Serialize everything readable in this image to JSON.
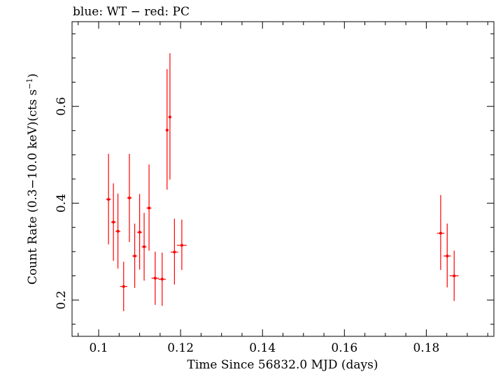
{
  "chart_data": {
    "type": "scatter",
    "title": "blue: WT − red: PC",
    "xlabel": "Time Since 56832.0 MJD (days)",
    "ylabel": "Count Rate (0.3−10.0 keV)(cts s",
    "ylabel_sup": "−1",
    "ylabel_end": ")",
    "xlim": [
      0.0935,
      0.1965
    ],
    "ylim": [
      0.125,
      0.775
    ],
    "x_ticks": [
      0.1,
      0.12,
      0.14,
      0.16,
      0.18
    ],
    "x_tick_labels": [
      "0.1",
      "0.12",
      "0.14",
      "0.16",
      "0.18"
    ],
    "y_ticks": [
      0.2,
      0.4,
      0.6
    ],
    "y_tick_labels": [
      "0.2",
      "0.4",
      "0.6"
    ],
    "series": [
      {
        "color": "#ff0000",
        "points": [
          {
            "x": 0.1024,
            "y": 0.408,
            "xerr": 0.0006,
            "ylo": 0.315,
            "yhi": 0.502
          },
          {
            "x": 0.1036,
            "y": 0.361,
            "xerr": 0.0006,
            "ylo": 0.281,
            "yhi": 0.441
          },
          {
            "x": 0.1047,
            "y": 0.342,
            "xerr": 0.0006,
            "ylo": 0.265,
            "yhi": 0.42
          },
          {
            "x": 0.1061,
            "y": 0.228,
            "xerr": 0.0009,
            "ylo": 0.177,
            "yhi": 0.279
          },
          {
            "x": 0.1075,
            "y": 0.411,
            "xerr": 0.0006,
            "ylo": 0.32,
            "yhi": 0.502
          },
          {
            "x": 0.1088,
            "y": 0.291,
            "xerr": 0.0006,
            "ylo": 0.225,
            "yhi": 0.358
          },
          {
            "x": 0.11,
            "y": 0.34,
            "xerr": 0.0006,
            "ylo": 0.263,
            "yhi": 0.419
          },
          {
            "x": 0.1111,
            "y": 0.31,
            "xerr": 0.0006,
            "ylo": 0.24,
            "yhi": 0.38
          },
          {
            "x": 0.1123,
            "y": 0.39,
            "xerr": 0.0006,
            "ylo": 0.302,
            "yhi": 0.48
          },
          {
            "x": 0.1138,
            "y": 0.245,
            "xerr": 0.0009,
            "ylo": 0.19,
            "yhi": 0.3
          },
          {
            "x": 0.1155,
            "y": 0.243,
            "xerr": 0.0009,
            "ylo": 0.188,
            "yhi": 0.298
          },
          {
            "x": 0.1167,
            "y": 0.551,
            "xerr": 0.0003,
            "ylo": 0.428,
            "yhi": 0.677
          },
          {
            "x": 0.1174,
            "y": 0.578,
            "xerr": 0.0003,
            "ylo": 0.449,
            "yhi": 0.71
          },
          {
            "x": 0.1185,
            "y": 0.299,
            "xerr": 0.0009,
            "ylo": 0.232,
            "yhi": 0.368
          },
          {
            "x": 0.1203,
            "y": 0.313,
            "xerr": 0.0012,
            "ylo": 0.262,
            "yhi": 0.366
          },
          {
            "x": 0.1835,
            "y": 0.338,
            "xerr": 0.0009,
            "ylo": 0.262,
            "yhi": 0.417
          },
          {
            "x": 0.1851,
            "y": 0.291,
            "xerr": 0.0009,
            "ylo": 0.226,
            "yhi": 0.358
          },
          {
            "x": 0.1868,
            "y": 0.25,
            "xerr": 0.0011,
            "ylo": 0.198,
            "yhi": 0.302
          }
        ]
      }
    ]
  }
}
